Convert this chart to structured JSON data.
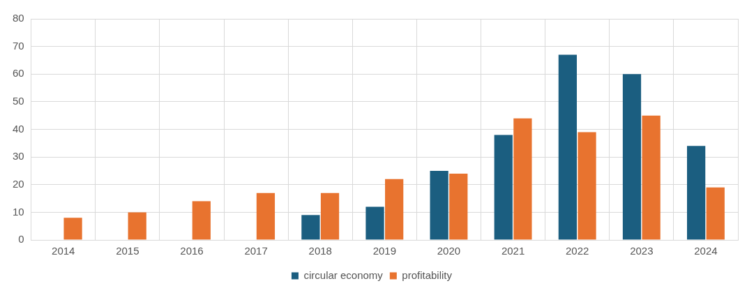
{
  "chart_data": {
    "type": "bar",
    "categories": [
      "2014",
      "2015",
      "2016",
      "2017",
      "2018",
      "2019",
      "2020",
      "2021",
      "2022",
      "2023",
      "2024"
    ],
    "series": [
      {
        "name": "circular economy",
        "color": "#1b5e80",
        "values": [
          0,
          0,
          0,
          0,
          9,
          12,
          25,
          38,
          67,
          60,
          34
        ]
      },
      {
        "name": "profitability",
        "color": "#e8732f",
        "values": [
          8,
          10,
          14,
          17,
          17,
          22,
          24,
          44,
          39,
          45,
          19
        ]
      }
    ],
    "ylim": [
      0,
      80
    ],
    "yticks": [
      0,
      10,
      20,
      30,
      40,
      50,
      60,
      70,
      80
    ],
    "grid": true,
    "legend": "bottom"
  }
}
